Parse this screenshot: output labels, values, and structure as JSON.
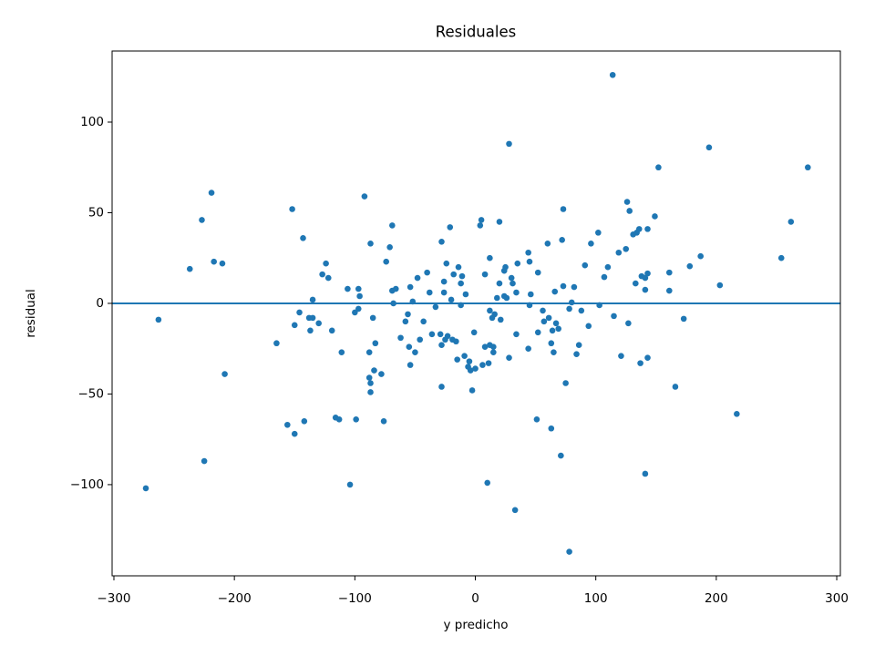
{
  "chart_data": {
    "type": "scatter",
    "title": "Residuales",
    "x_label": "y predicho",
    "y_label": "residual",
    "color": "#1f77b4",
    "hline": 0,
    "xlim": [
      -301.5,
      303
    ],
    "ylim": [
      -150.3,
      139.2
    ],
    "xticks": [
      {
        "value": -300,
        "label": "−300"
      },
      {
        "value": -200,
        "label": "−200"
      },
      {
        "value": -100,
        "label": "−100"
      },
      0,
      100,
      200,
      300
    ],
    "yticks": [
      {
        "value": -100,
        "label": "−100"
      },
      {
        "value": -50,
        "label": "−50"
      },
      0,
      50,
      100
    ],
    "x": [
      -273.5,
      -263,
      -237,
      -227,
      -225,
      -219,
      -217,
      -210,
      -208,
      -165,
      -156,
      -152,
      -150,
      -150,
      -146,
      -143,
      -142,
      -138,
      -137,
      -135,
      -135,
      -130,
      -127,
      -124,
      -122,
      -119,
      -116,
      -113,
      -111,
      -106,
      -104,
      -100,
      -99,
      -97,
      -97,
      -96,
      -92,
      -88,
      -88,
      -87,
      -87,
      -87,
      -85,
      -84,
      -83,
      -78,
      -76,
      -74,
      -71,
      -69,
      -69,
      -68,
      -66,
      -62,
      -58,
      -56,
      -55,
      -54,
      -54,
      -52,
      -50,
      -48,
      -46,
      -43,
      -40,
      -38,
      -36,
      -33,
      -29,
      -28,
      -28,
      -28,
      -26,
      -26,
      -25,
      -24,
      -23,
      -21,
      -20,
      -19,
      -18,
      -16,
      -15,
      -14,
      -12,
      -12,
      -11,
      -9,
      -8,
      -6,
      -5,
      -4,
      -2.6,
      -1,
      0,
      4,
      5,
      6,
      8,
      8,
      10,
      11,
      12,
      12,
      12,
      14,
      15,
      15,
      16,
      18,
      20,
      20,
      21,
      24,
      24,
      25,
      26,
      28,
      28,
      30,
      31,
      33,
      34,
      34,
      35,
      44,
      44,
      45,
      46,
      45,
      51,
      52,
      52,
      56,
      57,
      60,
      61,
      63,
      63,
      64,
      65,
      66,
      67,
      69,
      71,
      72,
      73,
      73,
      75,
      78,
      78,
      80,
      82,
      84,
      86,
      88,
      91,
      94,
      96,
      102,
      103,
      107,
      110,
      114,
      115,
      119,
      121,
      125,
      126,
      127,
      128,
      131,
      133,
      134,
      136,
      137,
      138,
      141,
      141,
      141,
      143,
      143,
      143,
      149,
      152,
      161,
      161,
      166,
      173,
      178,
      187,
      194,
      203,
      217,
      254,
      262,
      276
    ],
    "values": [
      -102,
      -9,
      19,
      46,
      -87,
      61,
      23,
      22,
      -39,
      -22,
      -67,
      52,
      -12,
      -72,
      -5,
      36,
      -65,
      -8,
      -15,
      2,
      -8,
      -11,
      16,
      22,
      14,
      -15,
      -63,
      -64,
      -27,
      8,
      -100,
      -5,
      -64,
      -3,
      8,
      4,
      59,
      -27,
      -41,
      33,
      -44,
      -49,
      -8,
      -37,
      -22,
      -39,
      -65,
      23,
      31,
      43,
      7,
      0,
      8,
      -19,
      -10,
      -6,
      -24,
      -34,
      9,
      1,
      -27,
      14,
      -20,
      -10,
      17,
      6,
      -17,
      -2,
      -17,
      34,
      -23,
      -46,
      12,
      6,
      -20,
      22,
      -18,
      42,
      2,
      -20,
      16,
      -21,
      -31,
      20,
      -1,
      11,
      15,
      -29,
      5,
      -35,
      -32,
      -37,
      -48,
      -16,
      -36,
      43,
      46,
      -34,
      16,
      -24,
      -99,
      -33,
      -23,
      25,
      -4,
      -8,
      -24,
      -27,
      -6,
      3,
      45,
      11,
      -9,
      4,
      18,
      20,
      3,
      88,
      -30,
      14,
      11,
      -114,
      6,
      -17,
      22,
      28,
      -25,
      23,
      5,
      -1,
      -64,
      17,
      -16,
      -4,
      -10,
      33,
      -8,
      -69,
      -22,
      -15,
      -27,
      6.5,
      -11,
      -14,
      -84,
      35,
      52,
      9.5,
      -44,
      -3,
      -137,
      0.5,
      9,
      -28,
      -23,
      -4,
      21,
      -12.5,
      33,
      39,
      -1,
      14.5,
      20,
      126,
      -7,
      28,
      -29,
      30,
      56,
      -11,
      51,
      38,
      11,
      39,
      41,
      -33,
      15,
      14,
      7.5,
      -94,
      16.5,
      -30,
      41,
      48,
      75,
      17,
      7,
      -46,
      -8.5,
      20.5,
      26,
      86,
      10,
      -61,
      25,
      45,
      75
    ]
  }
}
